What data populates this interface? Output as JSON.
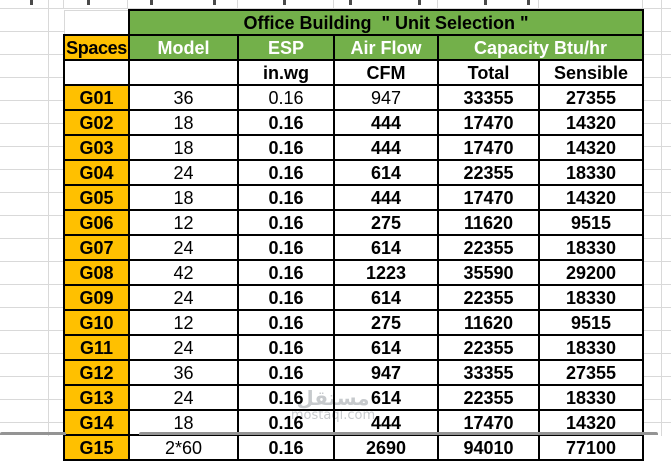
{
  "table": {
    "title": "Office Building  \" Unit Selection \"",
    "columns": {
      "spaces": "Spaces",
      "model": "Model",
      "esp": "ESP",
      "air_flow": "Air Flow",
      "capacity": "Capacity Btu/hr"
    },
    "subheaders": {
      "esp_unit": "in.wg",
      "air_flow_unit": "CFM",
      "total": "Total",
      "sensible": "Sensible"
    },
    "rows": [
      {
        "space": "G01",
        "model": "36",
        "esp": "0.16",
        "air_flow": "947",
        "total": "33355",
        "sensible": "27355"
      },
      {
        "space": "G02",
        "model": "18",
        "esp": "0.16",
        "air_flow": "444",
        "total": "17470",
        "sensible": "14320"
      },
      {
        "space": "G03",
        "model": "18",
        "esp": "0.16",
        "air_flow": "444",
        "total": "17470",
        "sensible": "14320"
      },
      {
        "space": "G04",
        "model": "24",
        "esp": "0.16",
        "air_flow": "614",
        "total": "22355",
        "sensible": "18330"
      },
      {
        "space": "G05",
        "model": "18",
        "esp": "0.16",
        "air_flow": "444",
        "total": "17470",
        "sensible": "14320"
      },
      {
        "space": "G06",
        "model": "12",
        "esp": "0.16",
        "air_flow": "275",
        "total": "11620",
        "sensible": "9515"
      },
      {
        "space": "G07",
        "model": "24",
        "esp": "0.16",
        "air_flow": "614",
        "total": "22355",
        "sensible": "18330"
      },
      {
        "space": "G08",
        "model": "42",
        "esp": "0.16",
        "air_flow": "1223",
        "total": "35590",
        "sensible": "29200"
      },
      {
        "space": "G09",
        "model": "24",
        "esp": "0.16",
        "air_flow": "614",
        "total": "22355",
        "sensible": "18330"
      },
      {
        "space": "G10",
        "model": "12",
        "esp": "0.16",
        "air_flow": "275",
        "total": "11620",
        "sensible": "9515"
      },
      {
        "space": "G11",
        "model": "24",
        "esp": "0.16",
        "air_flow": "614",
        "total": "22355",
        "sensible": "18330"
      },
      {
        "space": "G12",
        "model": "36",
        "esp": "0.16",
        "air_flow": "947",
        "total": "33355",
        "sensible": "27355"
      },
      {
        "space": "G13",
        "model": "24",
        "esp": "0.16",
        "air_flow": "614",
        "total": "22355",
        "sensible": "18330"
      },
      {
        "space": "G14",
        "model": "18",
        "esp": "0.16",
        "air_flow": "444",
        "total": "17470",
        "sensible": "14320"
      },
      {
        "space": "G15",
        "model": "2*60",
        "esp": "0.16",
        "air_flow": "2690",
        "total": "94010",
        "sensible": "77100"
      }
    ]
  },
  "watermark": {
    "line1": "مستقل",
    "line2": "mostaql.com"
  },
  "colors": {
    "header_green": "#73B04A",
    "accent_orange": "#FFC000",
    "border_black": "#000000",
    "gridline_gray": "#D9D9D9"
  }
}
